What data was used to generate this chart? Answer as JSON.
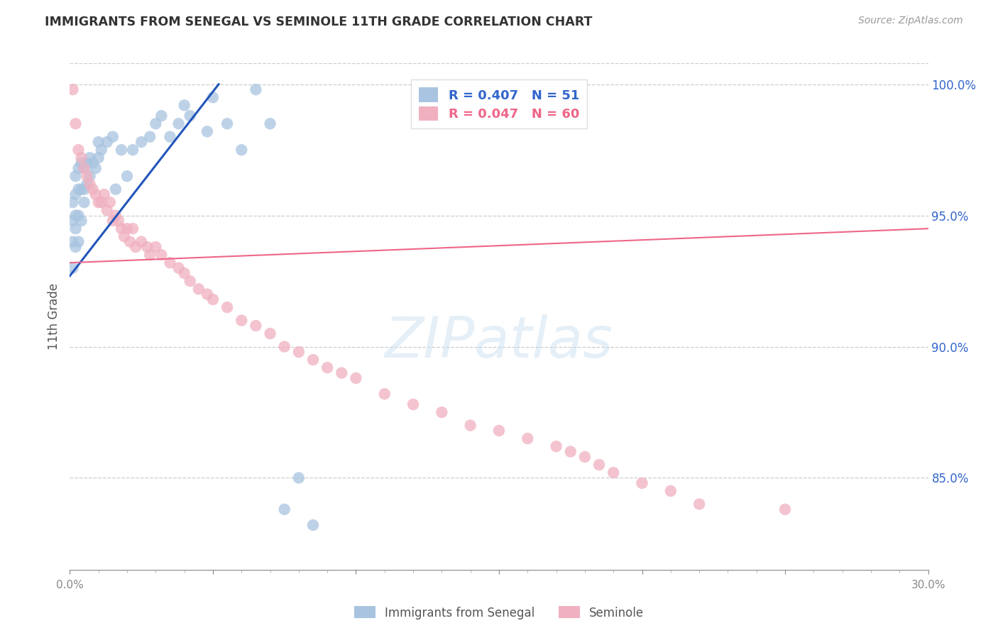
{
  "title": "IMMIGRANTS FROM SENEGAL VS SEMINOLE 11TH GRADE CORRELATION CHART",
  "source": "Source: ZipAtlas.com",
  "ylabel": "11th Grade",
  "right_yticks": [
    "100.0%",
    "95.0%",
    "90.0%",
    "85.0%"
  ],
  "right_ytick_vals": [
    1.0,
    0.95,
    0.9,
    0.85
  ],
  "legend_blue": "R = 0.407   N = 51",
  "legend_pink": "R = 0.047   N = 60",
  "legend_label_blue": "Immigrants from Senegal",
  "legend_label_pink": "Seminole",
  "blue_color": "#a8c4e0",
  "pink_color": "#f0b0c0",
  "blue_line_color": "#2255bb",
  "pink_line_color": "#ee6688",
  "blue_text_color": "#3366cc",
  "watermark": "ZIPatlas",
  "xlim": [
    0.0,
    0.3
  ],
  "ylim": [
    0.815,
    1.008
  ],
  "blue_scatter_x": [
    0.001,
    0.001,
    0.001,
    0.001,
    0.002,
    0.002,
    0.002,
    0.002,
    0.002,
    0.003,
    0.003,
    0.003,
    0.003,
    0.004,
    0.004,
    0.004,
    0.005,
    0.005,
    0.005,
    0.006,
    0.006,
    0.007,
    0.007,
    0.008,
    0.009,
    0.01,
    0.01,
    0.011,
    0.013,
    0.015,
    0.016,
    0.018,
    0.02,
    0.022,
    0.025,
    0.028,
    0.03,
    0.032,
    0.035,
    0.038,
    0.04,
    0.042,
    0.048,
    0.05,
    0.055,
    0.06,
    0.065,
    0.07,
    0.075,
    0.08,
    0.085
  ],
  "blue_scatter_y": [
    0.93,
    0.94,
    0.948,
    0.955,
    0.938,
    0.945,
    0.95,
    0.958,
    0.965,
    0.94,
    0.95,
    0.96,
    0.968,
    0.948,
    0.96,
    0.97,
    0.955,
    0.96,
    0.968,
    0.962,
    0.97,
    0.965,
    0.972,
    0.97,
    0.968,
    0.972,
    0.978,
    0.975,
    0.978,
    0.98,
    0.96,
    0.975,
    0.965,
    0.975,
    0.978,
    0.98,
    0.985,
    0.988,
    0.98,
    0.985,
    0.992,
    0.988,
    0.982,
    0.995,
    0.985,
    0.975,
    0.998,
    0.985,
    0.838,
    0.85,
    0.832
  ],
  "pink_scatter_x": [
    0.001,
    0.002,
    0.003,
    0.004,
    0.005,
    0.006,
    0.007,
    0.008,
    0.009,
    0.01,
    0.011,
    0.012,
    0.013,
    0.014,
    0.015,
    0.016,
    0.017,
    0.018,
    0.019,
    0.02,
    0.021,
    0.022,
    0.023,
    0.025,
    0.027,
    0.028,
    0.03,
    0.032,
    0.035,
    0.038,
    0.04,
    0.042,
    0.045,
    0.048,
    0.05,
    0.055,
    0.06,
    0.065,
    0.07,
    0.075,
    0.08,
    0.085,
    0.09,
    0.095,
    0.1,
    0.11,
    0.12,
    0.13,
    0.14,
    0.15,
    0.16,
    0.17,
    0.175,
    0.18,
    0.185,
    0.19,
    0.2,
    0.21,
    0.22,
    0.25
  ],
  "pink_scatter_y": [
    0.998,
    0.985,
    0.975,
    0.972,
    0.968,
    0.965,
    0.962,
    0.96,
    0.958,
    0.955,
    0.955,
    0.958,
    0.952,
    0.955,
    0.948,
    0.95,
    0.948,
    0.945,
    0.942,
    0.945,
    0.94,
    0.945,
    0.938,
    0.94,
    0.938,
    0.935,
    0.938,
    0.935,
    0.932,
    0.93,
    0.928,
    0.925,
    0.922,
    0.92,
    0.918,
    0.915,
    0.91,
    0.908,
    0.905,
    0.9,
    0.898,
    0.895,
    0.892,
    0.89,
    0.888,
    0.882,
    0.878,
    0.875,
    0.87,
    0.868,
    0.865,
    0.862,
    0.86,
    0.858,
    0.855,
    0.852,
    0.848,
    0.845,
    0.84,
    0.838
  ],
  "blue_trend_x": [
    0.0,
    0.052
  ],
  "blue_trend_y": [
    0.927,
    1.0
  ],
  "pink_trend_x": [
    0.0,
    0.3
  ],
  "pink_trend_y": [
    0.932,
    0.945
  ],
  "xtick_positions": [
    0.0,
    0.05,
    0.1,
    0.15,
    0.2,
    0.25,
    0.3
  ],
  "xtick_labels_show": [
    "0.0%",
    "",
    "",
    "",
    "",
    "",
    "30.0%"
  ]
}
